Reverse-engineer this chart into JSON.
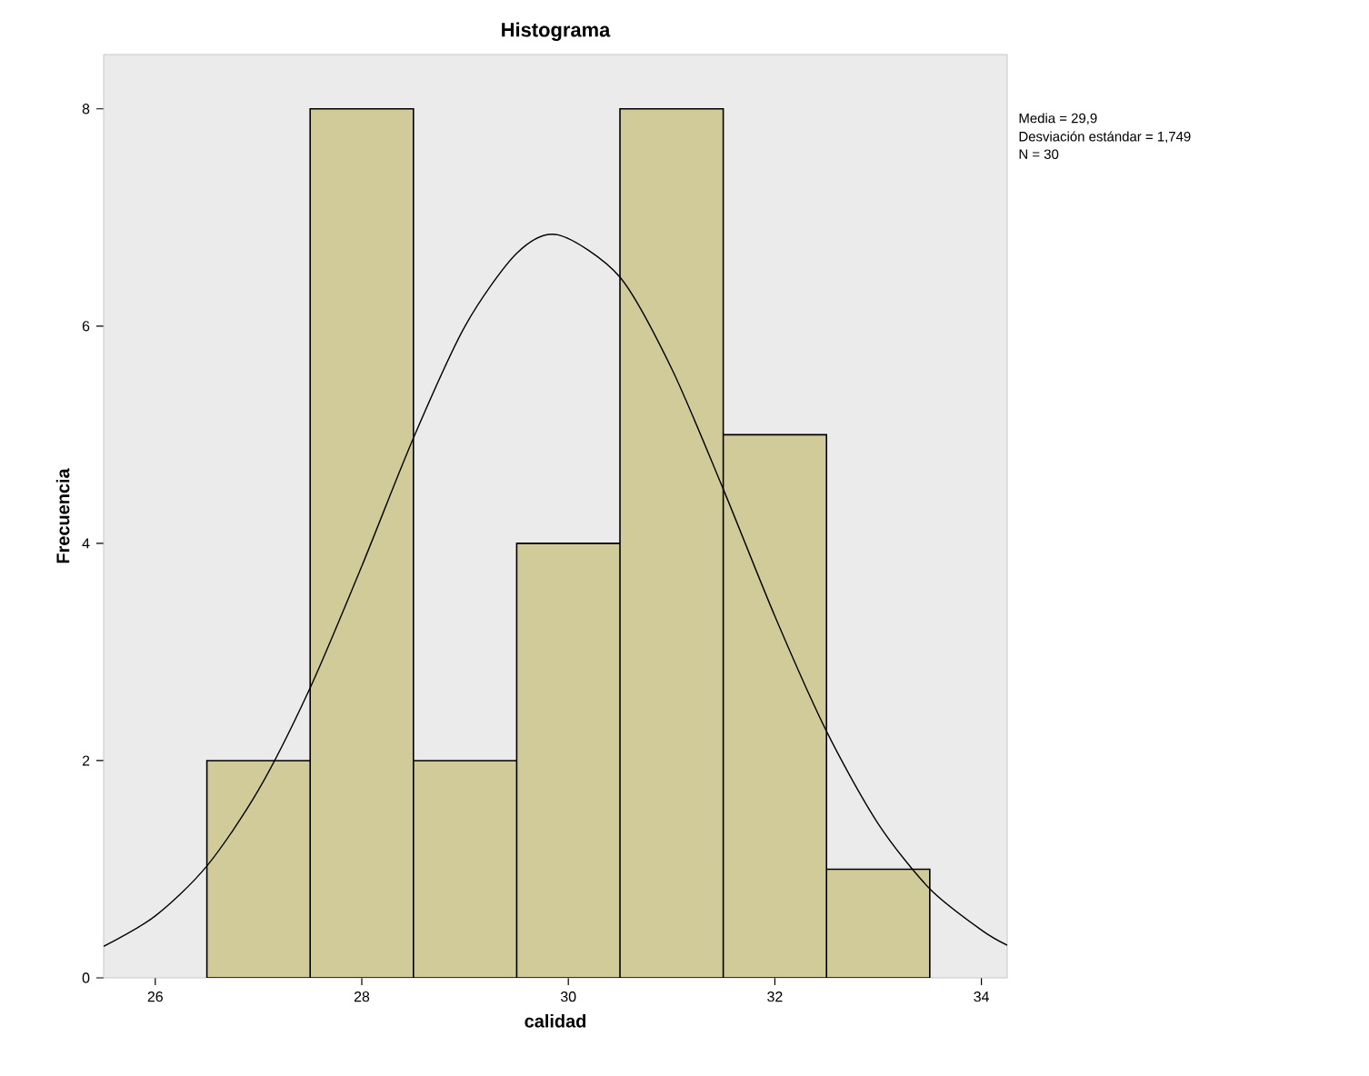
{
  "chart_data": {
    "type": "histogram",
    "title": "Histograma",
    "xlabel": "calidad",
    "ylabel": "Frecuencia",
    "bins": [
      26.5,
      27.5,
      28.5,
      29.5,
      30.5,
      31.5,
      32.5,
      33.5
    ],
    "values": [
      2,
      8,
      2,
      4,
      8,
      5,
      1
    ],
    "color": "#d1cb9a",
    "series": [
      {
        "type": "line",
        "color": "#000000",
        "x": [
          25.5,
          26,
          26.5,
          27,
          27.5,
          28,
          28.5,
          29,
          29.5,
          29.9,
          30.5,
          31,
          31.5,
          32,
          32.5,
          33,
          33.5,
          34,
          34.25
        ],
        "values": [
          0.29,
          0.57,
          1.03,
          1.73,
          2.67,
          3.79,
          4.97,
          6.0,
          6.67,
          6.84,
          6.45,
          5.61,
          4.5,
          3.33,
          2.27,
          1.42,
          0.82,
          0.44,
          0.3
        ]
      }
    ],
    "xlim": [
      25.5,
      34.25
    ],
    "xticks": [
      26,
      28,
      30,
      32,
      34
    ],
    "ylim": [
      0,
      8.5
    ],
    "yticks": [
      0,
      2,
      4,
      6,
      8
    ],
    "grid": false,
    "annotations": [
      "Media = 29,9",
      "Desviación estándar = 1,749",
      "N = 30"
    ]
  }
}
